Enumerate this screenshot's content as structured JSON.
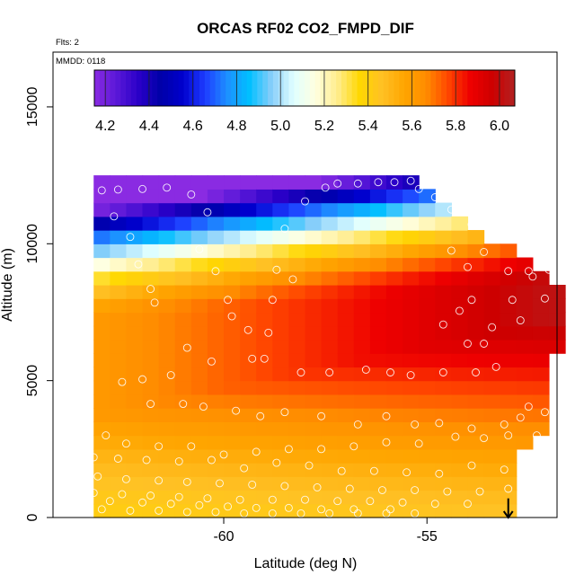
{
  "chart_data": {
    "type": "heatmap",
    "title": "ORCAS RF02 CO2_FMPD_DIF",
    "flights_label": "Flts: 2",
    "date_label": "MMDD: 0118",
    "xlabel": "Latitude (deg N)",
    "ylabel": "Altitude (m)",
    "xlim": [
      -64.2,
      -51.8
    ],
    "ylim": [
      0,
      17000
    ],
    "x_ticks": [
      -60,
      -55
    ],
    "x_tick_labels": [
      "-60",
      "-55"
    ],
    "y_ticks": [
      0,
      5000,
      10000,
      15000
    ],
    "y_tick_labels": [
      "0",
      "5000",
      "10000",
      "15000"
    ],
    "colorbar": {
      "min": 4.15,
      "max": 6.07,
      "ticks": [
        4.2,
        4.4,
        4.6,
        4.8,
        5.0,
        5.2,
        5.4,
        5.6,
        5.8,
        6.0
      ],
      "tick_labels": [
        "4.2",
        "4.4",
        "4.6",
        "4.8",
        "5.0",
        "5.2",
        "5.4",
        "5.6",
        "5.8",
        "6.0"
      ],
      "colors": [
        "#8a2be2",
        "#5a18d8",
        "#2a00c8",
        "#0000a8",
        "#0000cd",
        "#1e3cff",
        "#1e90ff",
        "#00bfff",
        "#87cefa",
        "#e0ffff",
        "#ffffe0",
        "#ffec8b",
        "#ffd700",
        "#ffc125",
        "#ffa500",
        "#ff8c00",
        "#ff4500",
        "#ee0000",
        "#cd0000",
        "#b22222"
      ]
    },
    "field_description_grid": {
      "lat_start": -63.2,
      "lat_step": 0.4,
      "alt_start": 0,
      "alt_step": 500
    },
    "arrow_marker": {
      "lat": -53.0,
      "alt_top": 700,
      "alt_bottom": 0
    },
    "sample_points": [
      [
        -63.0,
        11950
      ],
      [
        -62.6,
        11980
      ],
      [
        -62.0,
        12000
      ],
      [
        -61.4,
        12050
      ],
      [
        -60.8,
        11800
      ],
      [
        -60.4,
        11150
      ],
      [
        -62.7,
        11000
      ],
      [
        -62.3,
        10250
      ],
      [
        -62.1,
        9250
      ],
      [
        -61.8,
        8350
      ],
      [
        -61.7,
        7850
      ],
      [
        -60.6,
        9800
      ],
      [
        -60.2,
        9000
      ],
      [
        -59.9,
        7950
      ],
      [
        -59.8,
        7350
      ],
      [
        -59.4,
        6850
      ],
      [
        -58.9,
        6750
      ],
      [
        -58.8,
        7950
      ],
      [
        -58.7,
        9050
      ],
      [
        -58.3,
        8700
      ],
      [
        -58.5,
        10550
      ],
      [
        -58.0,
        11550
      ],
      [
        -57.5,
        12050
      ],
      [
        -57.2,
        12200
      ],
      [
        -56.7,
        12200
      ],
      [
        -56.2,
        12250
      ],
      [
        -55.8,
        12250
      ],
      [
        -55.4,
        12300
      ],
      [
        -55.2,
        12000
      ],
      [
        -54.8,
        11700
      ],
      [
        -54.4,
        11250
      ],
      [
        -53.9,
        10700
      ],
      [
        -53.4,
        10200
      ],
      [
        -53.6,
        9700
      ],
      [
        -54.4,
        9750
      ],
      [
        -54.0,
        9150
      ],
      [
        -53.0,
        9000
      ],
      [
        -52.5,
        9000
      ],
      [
        -52.0,
        9050
      ],
      [
        -51.85,
        9100
      ],
      [
        -52.4,
        8800
      ],
      [
        -52.1,
        8000
      ],
      [
        -52.9,
        7950
      ],
      [
        -52.7,
        7200
      ],
      [
        -53.4,
        6950
      ],
      [
        -53.9,
        7950
      ],
      [
        -54.2,
        7550
      ],
      [
        -54.6,
        7050
      ],
      [
        -54.0,
        6350
      ],
      [
        -53.6,
        6350
      ],
      [
        -53.3,
        5500
      ],
      [
        -53.8,
        5300
      ],
      [
        -54.6,
        5300
      ],
      [
        -55.4,
        5200
      ],
      [
        -55.9,
        5300
      ],
      [
        -56.5,
        5400
      ],
      [
        -57.4,
        5300
      ],
      [
        -58.1,
        5300
      ],
      [
        -59.0,
        5800
      ],
      [
        -59.3,
        5800
      ],
      [
        -60.3,
        5700
      ],
      [
        -60.9,
        6200
      ],
      [
        -61.3,
        5200
      ],
      [
        -62.0,
        5050
      ],
      [
        -62.5,
        4950
      ],
      [
        -61.8,
        4150
      ],
      [
        -61.0,
        4150
      ],
      [
        -60.5,
        4050
      ],
      [
        -59.7,
        3900
      ],
      [
        -59.1,
        3700
      ],
      [
        -58.5,
        3850
      ],
      [
        -57.6,
        3700
      ],
      [
        -56.7,
        3400
      ],
      [
        -56.0,
        3700
      ],
      [
        -55.3,
        3400
      ],
      [
        -54.7,
        3450
      ],
      [
        -53.9,
        3250
      ],
      [
        -53.1,
        3400
      ],
      [
        -52.7,
        3650
      ],
      [
        -52.5,
        4050
      ],
      [
        -52.1,
        3850
      ],
      [
        -52.3,
        3000
      ],
      [
        -53.0,
        3000
      ],
      [
        -53.6,
        2900
      ],
      [
        -54.3,
        2950
      ],
      [
        -55.2,
        2700
      ],
      [
        -56.0,
        2750
      ],
      [
        -56.8,
        2600
      ],
      [
        -57.6,
        2500
      ],
      [
        -58.4,
        2500
      ],
      [
        -59.2,
        2400
      ],
      [
        -60.0,
        2300
      ],
      [
        -60.8,
        2600
      ],
      [
        -61.6,
        2600
      ],
      [
        -62.4,
        2700
      ],
      [
        -62.9,
        3000
      ],
      [
        -63.2,
        2200
      ],
      [
        -62.6,
        2150
      ],
      [
        -61.9,
        2100
      ],
      [
        -61.1,
        2050
      ],
      [
        -60.3,
        2100
      ],
      [
        -59.5,
        1800
      ],
      [
        -58.7,
        2000
      ],
      [
        -57.9,
        1900
      ],
      [
        -57.1,
        1700
      ],
      [
        -56.3,
        1700
      ],
      [
        -55.5,
        1650
      ],
      [
        -54.7,
        1600
      ],
      [
        -53.9,
        1900
      ],
      [
        -53.1,
        1750
      ],
      [
        -52.6,
        1500
      ],
      [
        -63.1,
        1500
      ],
      [
        -62.4,
        1400
      ],
      [
        -61.6,
        1350
      ],
      [
        -60.9,
        1300
      ],
      [
        -60.1,
        1250
      ],
      [
        -59.3,
        1200
      ],
      [
        -58.5,
        1150
      ],
      [
        -57.7,
        1100
      ],
      [
        -56.9,
        1050
      ],
      [
        -56.1,
        1000
      ],
      [
        -55.3,
        1000
      ],
      [
        -54.5,
        950
      ],
      [
        -53.7,
        950
      ],
      [
        -53.0,
        1050
      ],
      [
        -63.2,
        900
      ],
      [
        -62.5,
        850
      ],
      [
        -61.8,
        800
      ],
      [
        -61.1,
        750
      ],
      [
        -60.4,
        700
      ],
      [
        -59.6,
        650
      ],
      [
        -58.8,
        650
      ],
      [
        -58.0,
        650
      ],
      [
        -57.2,
        600
      ],
      [
        -56.4,
        600
      ],
      [
        -55.6,
        550
      ],
      [
        -54.8,
        500
      ],
      [
        -54.0,
        500
      ],
      [
        -63.0,
        300
      ],
      [
        -62.3,
        250
      ],
      [
        -61.6,
        250
      ],
      [
        -60.9,
        200
      ],
      [
        -60.2,
        200
      ],
      [
        -59.5,
        150
      ],
      [
        -58.8,
        150
      ],
      [
        -58.1,
        150
      ],
      [
        -57.4,
        150
      ],
      [
        -56.7,
        150
      ],
      [
        -56.0,
        150
      ],
      [
        -55.3,
        150
      ],
      [
        -62.8,
        600
      ],
      [
        -62.0,
        550
      ],
      [
        -61.3,
        500
      ],
      [
        -60.6,
        450
      ],
      [
        -59.9,
        400
      ],
      [
        -59.2,
        350
      ],
      [
        -58.4,
        350
      ],
      [
        -57.6,
        300
      ],
      [
        -56.8,
        300
      ],
      [
        -55.9,
        300
      ]
    ]
  }
}
